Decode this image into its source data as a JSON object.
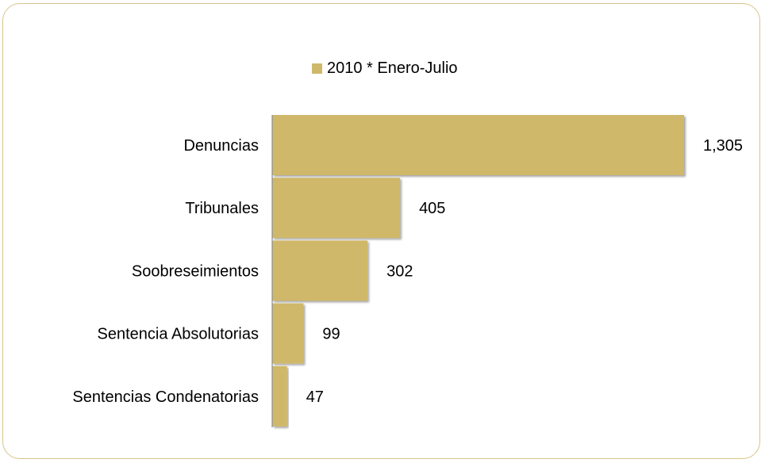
{
  "legend": {
    "label": "2010 * Enero-Julio"
  },
  "colors": {
    "bar": "#cfb869",
    "frame": "#d8c48a",
    "axis": "#8c8c8c"
  },
  "chart_data": {
    "type": "bar",
    "orientation": "horizontal",
    "title": "",
    "xlabel": "",
    "ylabel": "",
    "grid": false,
    "legend_position": "top",
    "categories": [
      "Denuncias",
      "Tribunales",
      "Soobreseimientos",
      "Sentencia Absolutorias",
      "Sentencias Condenatorias"
    ],
    "series": [
      {
        "name": "2010 * Enero-Julio",
        "values": [
          1305,
          405,
          302,
          99,
          47
        ],
        "labels": [
          "1,305",
          "405",
          "302",
          "99",
          "47"
        ]
      }
    ],
    "xlim": [
      0,
      1305
    ]
  }
}
